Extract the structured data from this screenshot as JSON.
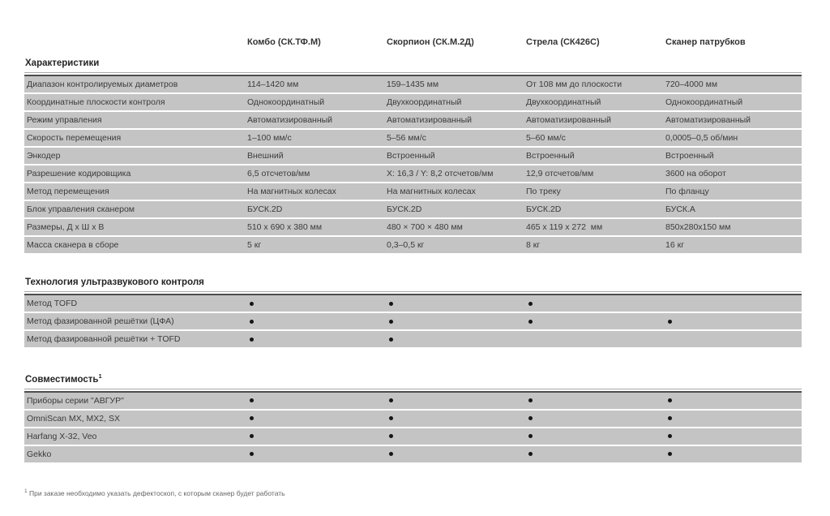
{
  "columns": [
    "Комбо (СК.ТФ.М)",
    "Скорпион (СК.М.2Д)",
    "Стрела (СК426С)",
    "Сканер патрубков"
  ],
  "sections": [
    {
      "title": "Характеристики",
      "sup": "",
      "rows": [
        {
          "label": "Диапазон контролируемых диаметров",
          "values": [
            "114–1420 мм",
            "159–1435 мм",
            "От 108 мм до плоскости",
            "720–4000 мм"
          ]
        },
        {
          "label": "Координатные плоскости контроля",
          "values": [
            "Однокоординатный",
            "Двухкоординатный",
            "Двухкоординатный",
            "Однокоординатный"
          ]
        },
        {
          "label": "Режим управления",
          "values": [
            "Автоматизированный",
            "Автоматизированный",
            "Автоматизированный",
            "Автоматизированный"
          ]
        },
        {
          "label": "Скорость перемещения",
          "values": [
            "1–100 мм/с",
            "5–56 мм/с",
            "5–60 мм/с",
            "0,0005–0,5 об/мин"
          ]
        },
        {
          "label": "Энкодер",
          "values": [
            "Внешний",
            "Встроенный",
            "Встроенный",
            "Встроенный"
          ]
        },
        {
          "label": "Разрешение кодировщика",
          "values": [
            "6,5 отсчетов/мм",
            "X: 16,3 / Y: 8,2 отсчетов/мм",
            "12,9 отсчетов/мм",
            "3600 на оборот"
          ]
        },
        {
          "label": "Метод перемещения",
          "values": [
            "На магнитных колесах",
            "На магнитных колесах",
            "По треку",
            "По фланцу"
          ]
        },
        {
          "label": "Блок управления сканером",
          "values": [
            "БУСК.2D",
            "БУСК.2D",
            "БУСК.2D",
            "БУСК.А"
          ]
        },
        {
          "label": "Размеры, Д х Ш х В",
          "values": [
            "510 x 690 x 380 мм",
            "480 × 700 × 480 мм",
            "465 x 119 x 272  мм",
            "850x280x150 мм"
          ]
        },
        {
          "label": "Масса сканера в сборе",
          "values": [
            "5 кг",
            "0,3–0,5 кг",
            "8 кг",
            "16 кг"
          ]
        }
      ]
    },
    {
      "title": "Технология ультразвукового контроля",
      "sup": "",
      "rows": [
        {
          "label": "Метод TOFD",
          "dots": [
            true,
            true,
            true,
            false
          ]
        },
        {
          "label": "Метод фазированной решётки (ЦФА)",
          "dots": [
            true,
            true,
            true,
            true
          ]
        },
        {
          "label": "Метод фазированной решётки + TOFD",
          "dots": [
            true,
            true,
            false,
            false
          ]
        }
      ]
    },
    {
      "title": "Совместимость",
      "sup": "1",
      "rows": [
        {
          "label": "Приборы серии \"АВГУР\"",
          "dots": [
            true,
            true,
            true,
            true
          ]
        },
        {
          "label": "OmniScan MX, MX2, SX",
          "dots": [
            true,
            true,
            true,
            true
          ]
        },
        {
          "label": "Harfang X-32, Veo",
          "dots": [
            true,
            true,
            true,
            true
          ]
        },
        {
          "label": "Gekko",
          "dots": [
            true,
            true,
            true,
            true
          ]
        }
      ]
    }
  ],
  "footnote": {
    "sup": "1",
    "text": " При заказе необходимо указать дефектоскоп, с которым сканер будет работать"
  },
  "colors": {
    "row_bg": "#c4c4c4",
    "dark_rule": "#4d4d4d",
    "header_rule": "#a8a8a8",
    "text": "#3b3b3b"
  }
}
